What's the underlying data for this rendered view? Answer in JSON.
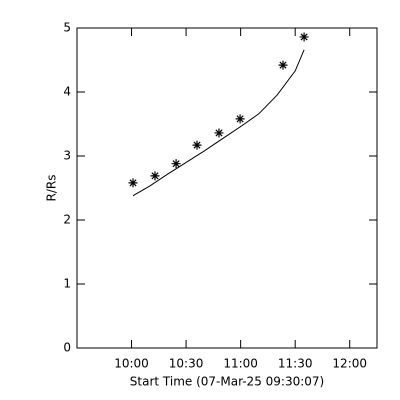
{
  "chart_data": {
    "type": "scatter",
    "xlabel": "Start Time (07-Mar-25 09:30:07)",
    "ylabel": "R/Rs",
    "xlim": [
      0,
      165
    ],
    "ylim": [
      0,
      5
    ],
    "xticks": [
      {
        "value": 30,
        "label": "10:00"
      },
      {
        "value": 60,
        "label": "10:30"
      },
      {
        "value": 90,
        "label": "11:00"
      },
      {
        "value": 120,
        "label": "11:30"
      },
      {
        "value": 150,
        "label": "12:00"
      }
    ],
    "yticks": [
      0,
      1,
      2,
      3,
      4,
      5
    ],
    "series": [
      {
        "marker": "asterisk",
        "color": "#000000",
        "x": [
          30.8,
          42.9,
          54.5,
          66,
          78.1,
          89.7,
          113.3,
          124.9
        ],
        "values": [
          2.58,
          2.69,
          2.88,
          3.17,
          3.36,
          3.58,
          4.42,
          4.86
        ]
      },
      {
        "marker": "line",
        "color": "#000000",
        "x": [
          30.8,
          40,
          50,
          60,
          70,
          80,
          90,
          100,
          110,
          120,
          124.9
        ],
        "values": [
          2.38,
          2.53,
          2.72,
          2.9,
          3.08,
          3.27,
          3.46,
          3.66,
          3.95,
          4.33,
          4.66
        ]
      }
    ]
  }
}
